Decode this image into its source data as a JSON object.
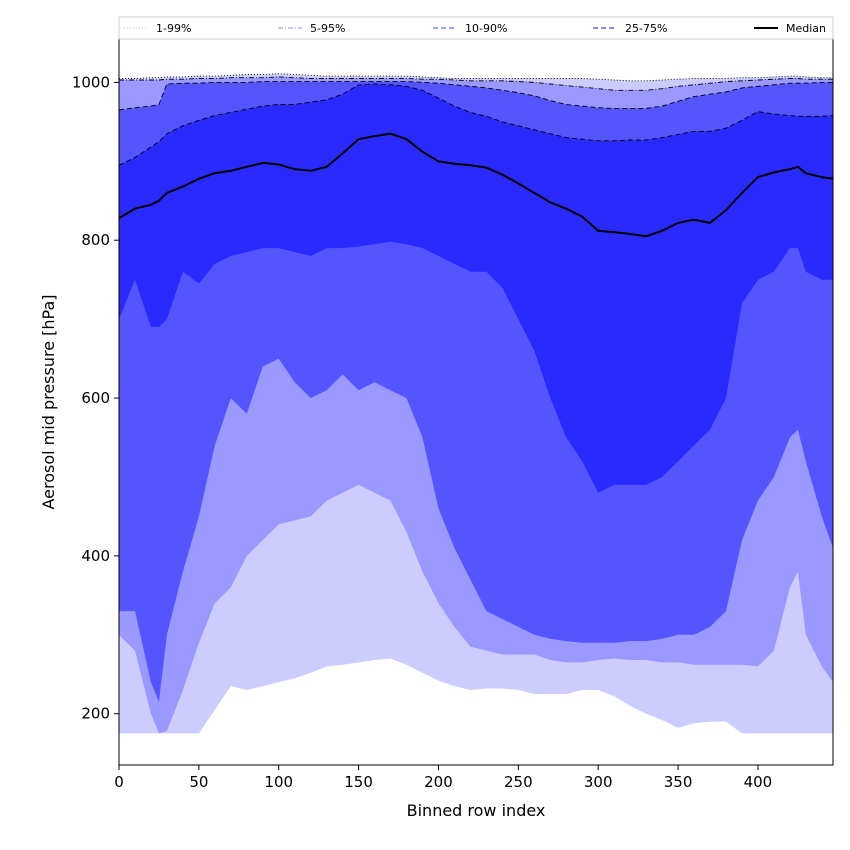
{
  "chart_data": {
    "type": "area",
    "title": "",
    "xlabel": "Binned row index",
    "ylabel": "Aerosol mid pressure [hPa]",
    "xlim": [
      0,
      447
    ],
    "ylim": [
      135,
      1055
    ],
    "xticks": [
      0,
      50,
      100,
      150,
      200,
      250,
      300,
      350,
      400
    ],
    "yticks": [
      200,
      400,
      600,
      800,
      1000
    ],
    "grid": false,
    "legend_position": "top, single row above plot",
    "x": [
      0,
      10,
      20,
      25,
      30,
      40,
      50,
      60,
      70,
      80,
      90,
      100,
      110,
      120,
      130,
      140,
      150,
      160,
      170,
      180,
      190,
      200,
      210,
      220,
      230,
      240,
      250,
      260,
      270,
      280,
      290,
      300,
      310,
      320,
      330,
      340,
      350,
      360,
      370,
      380,
      390,
      400,
      410,
      420,
      425,
      430,
      440,
      447
    ],
    "series": [
      {
        "name": "1-99%",
        "color": "#ccccff",
        "line_color": "#bcbcf0",
        "line_style": "dotted",
        "lower": [
          175,
          175,
          175,
          175,
          175,
          175,
          175,
          205,
          235,
          230,
          235,
          240,
          245,
          252,
          260,
          262,
          265,
          268,
          270,
          262,
          252,
          242,
          235,
          230,
          232,
          232,
          230,
          225,
          225,
          225,
          230,
          230,
          222,
          210,
          200,
          192,
          182,
          188,
          190,
          190,
          175,
          175,
          175,
          175,
          175,
          175,
          175,
          175
        ],
        "upper": [
          1005,
          1005,
          1006,
          1006,
          1007,
          1007,
          1008,
          1008,
          1009,
          1010,
          1010,
          1011,
          1010,
          1009,
          1008,
          1008,
          1008,
          1008,
          1008,
          1008,
          1007,
          1006,
          1005,
          1005,
          1005,
          1005,
          1005,
          1005,
          1005,
          1005,
          1005,
          1004,
          1003,
          1002,
          1002,
          1003,
          1004,
          1005,
          1005,
          1005,
          1006,
          1006,
          1007,
          1008,
          1008,
          1007,
          1006,
          1006
        ]
      },
      {
        "name": "5-95%",
        "color": "#9999ff",
        "line_color": "#8a8aee",
        "line_style": "dashdot",
        "lower": [
          300,
          280,
          200,
          175,
          178,
          230,
          290,
          340,
          360,
          400,
          420,
          440,
          445,
          450,
          470,
          480,
          490,
          480,
          470,
          430,
          380,
          340,
          310,
          285,
          280,
          275,
          275,
          275,
          268,
          265,
          265,
          268,
          270,
          268,
          268,
          265,
          265,
          262,
          262,
          262,
          262,
          260,
          280,
          360,
          380,
          300,
          260,
          240
        ],
        "upper": [
          1003,
          1003,
          1003,
          1003,
          1004,
          1004,
          1005,
          1005,
          1006,
          1006,
          1006,
          1007,
          1006,
          1005,
          1005,
          1005,
          1005,
          1005,
          1005,
          1005,
          1004,
          1004,
          1003,
          1002,
          1002,
          1002,
          1001,
          1000,
          998,
          996,
          994,
          992,
          990,
          990,
          990,
          992,
          995,
          997,
          999,
          1001,
          1002,
          1003,
          1004,
          1005,
          1005,
          1004,
          1004,
          1004
        ]
      },
      {
        "name": "10-90%",
        "color": "#5555ff",
        "line_color": "#4444ee",
        "line_style": "dashed",
        "lower": [
          330,
          330,
          240,
          215,
          300,
          380,
          450,
          540,
          600,
          580,
          640,
          650,
          620,
          600,
          610,
          630,
          610,
          620,
          610,
          600,
          550,
          460,
          410,
          370,
          330,
          320,
          310,
          300,
          295,
          292,
          290,
          290,
          290,
          292,
          292,
          295,
          300,
          300,
          310,
          330,
          420,
          470,
          500,
          550,
          560,
          520,
          450,
          410
        ],
        "upper": [
          965,
          968,
          970,
          972,
          998,
          999,
          999,
          1000,
          1000,
          1000,
          1001,
          1001,
          1001,
          1001,
          1001,
          1001,
          1001,
          1001,
          1001,
          1001,
          1000,
          999,
          997,
          995,
          993,
          990,
          987,
          983,
          977,
          972,
          970,
          968,
          967,
          967,
          967,
          970,
          976,
          982,
          985,
          988,
          993,
          995,
          997,
          999,
          999,
          999,
          1000,
          1000
        ]
      },
      {
        "name": "25-75%",
        "color": "#2a2aff",
        "line_color": "#1a1aee",
        "line_style": "dashed",
        "lower": [
          700,
          750,
          690,
          690,
          700,
          760,
          745,
          770,
          780,
          785,
          790,
          790,
          785,
          780,
          790,
          790,
          792,
          795,
          798,
          795,
          790,
          780,
          770,
          760,
          760,
          740,
          700,
          660,
          600,
          550,
          520,
          480,
          490,
          490,
          490,
          500,
          520,
          540,
          560,
          600,
          720,
          750,
          760,
          790,
          790,
          760,
          750,
          750
        ],
        "upper": [
          895,
          905,
          918,
          925,
          935,
          945,
          952,
          958,
          962,
          966,
          970,
          972,
          972,
          975,
          978,
          985,
          997,
          998,
          997,
          995,
          990,
          980,
          970,
          962,
          957,
          950,
          945,
          940,
          935,
          930,
          928,
          926,
          926,
          927,
          927,
          930,
          934,
          938,
          938,
          942,
          952,
          963,
          960,
          958,
          957,
          957,
          957,
          958
        ]
      }
    ],
    "median": {
      "name": "Median",
      "color": "#000000",
      "values": [
        828,
        840,
        845,
        850,
        860,
        868,
        878,
        885,
        888,
        893,
        898,
        896,
        890,
        888,
        893,
        910,
        928,
        932,
        935,
        928,
        912,
        900,
        897,
        895,
        892,
        883,
        872,
        860,
        848,
        840,
        830,
        812,
        810,
        808,
        805,
        812,
        822,
        826,
        822,
        838,
        860,
        880,
        886,
        890,
        893,
        885,
        880,
        878
      ]
    }
  }
}
